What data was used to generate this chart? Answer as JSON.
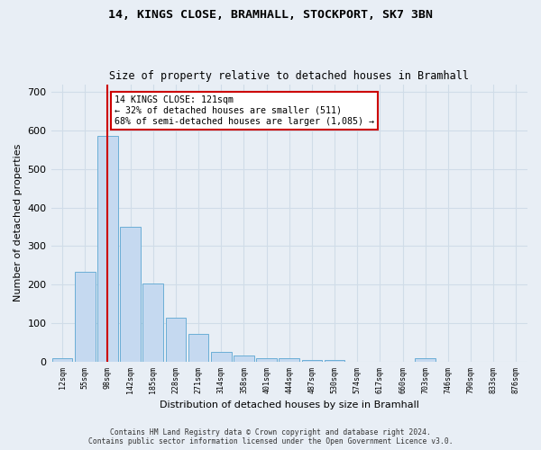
{
  "title1": "14, KINGS CLOSE, BRAMHALL, STOCKPORT, SK7 3BN",
  "title2": "Size of property relative to detached houses in Bramhall",
  "xlabel": "Distribution of detached houses by size in Bramhall",
  "ylabel": "Number of detached properties",
  "footer1": "Contains HM Land Registry data © Crown copyright and database right 2024.",
  "footer2": "Contains public sector information licensed under the Open Government Licence v3.0.",
  "bin_labels": [
    "12sqm",
    "55sqm",
    "98sqm",
    "142sqm",
    "185sqm",
    "228sqm",
    "271sqm",
    "314sqm",
    "358sqm",
    "401sqm",
    "444sqm",
    "487sqm",
    "530sqm",
    "574sqm",
    "617sqm",
    "660sqm",
    "703sqm",
    "746sqm",
    "790sqm",
    "833sqm",
    "876sqm"
  ],
  "bar_values": [
    8,
    233,
    585,
    350,
    202,
    115,
    73,
    25,
    15,
    10,
    10,
    5,
    5,
    0,
    0,
    0,
    8,
    0,
    0,
    0,
    0
  ],
  "bar_color": "#c5d9f0",
  "bar_edge_color": "#6baed6",
  "red_line_color": "#cc0000",
  "red_line_bin": 2,
  "annotation_text": "14 KINGS CLOSE: 121sqm\n← 32% of detached houses are smaller (511)\n68% of semi-detached houses are larger (1,085) →",
  "annotation_box_color": "#ffffff",
  "annotation_box_edge": "#cc0000",
  "ylim": [
    0,
    720
  ],
  "yticks": [
    0,
    100,
    200,
    300,
    400,
    500,
    600,
    700
  ],
  "grid_color": "#d0dce8",
  "background_color": "#e8eef5",
  "plot_bg_color": "#e8eef5",
  "fig_width": 6.0,
  "fig_height": 5.0,
  "dpi": 100
}
